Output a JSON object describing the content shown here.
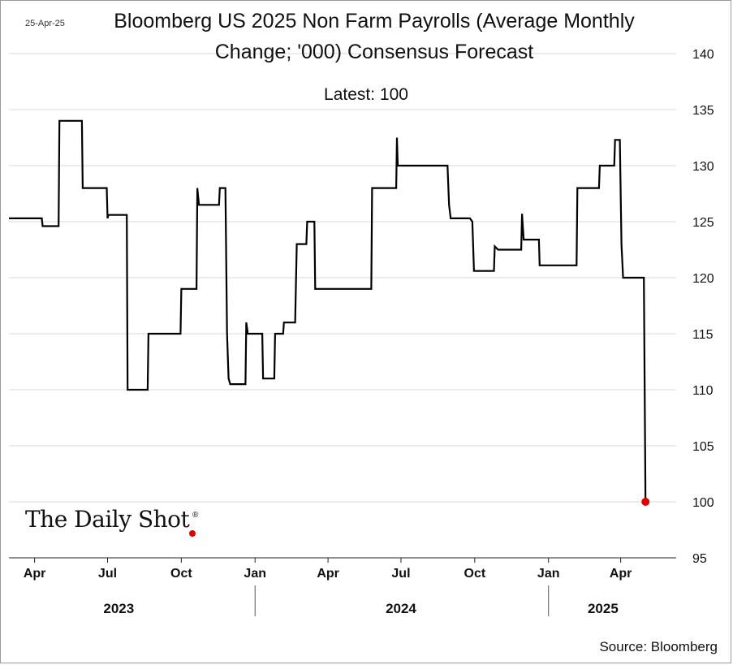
{
  "date_stamp": "25-Apr-25",
  "logo_text": "The Daily Shot",
  "source": "Source: Bloomberg",
  "colors": {
    "line": "#000000",
    "latest_marker": "#e00000",
    "grid": "#d9d9d9"
  },
  "chart_data": {
    "type": "line",
    "title": "Bloomberg US 2025 Non Farm Payrolls (Average Monthly Change; '000) Consensus Forecast",
    "subtitle": "Latest:  100",
    "ylim": [
      95,
      140
    ],
    "yticks": [
      140,
      135,
      130,
      125,
      120,
      115,
      110,
      105,
      100,
      95
    ],
    "y_axis_side": "right",
    "grid": "horizontal",
    "x_ticks": [
      {
        "label": "Apr",
        "date": "2023-04-01"
      },
      {
        "label": "Jul",
        "date": "2023-07-01"
      },
      {
        "label": "Oct",
        "date": "2023-10-01"
      },
      {
        "label": "Jan",
        "date": "2024-01-01"
      },
      {
        "label": "Apr",
        "date": "2024-04-01"
      },
      {
        "label": "Jul",
        "date": "2024-07-01"
      },
      {
        "label": "Oct",
        "date": "2024-10-01"
      },
      {
        "label": "Jan",
        "date": "2025-01-01"
      },
      {
        "label": "Apr",
        "date": "2025-04-01"
      }
    ],
    "year_labels": [
      {
        "label": "2023",
        "date": "2023-07-15"
      },
      {
        "label": "2024",
        "date": "2024-07-01"
      },
      {
        "label": "2025",
        "date": "2025-03-10"
      }
    ],
    "year_separators": [
      "2024-01-01",
      "2025-01-01"
    ],
    "xlim": [
      "2023-02-28",
      "2025-05-20"
    ],
    "series": [
      {
        "points": [
          [
            "2023-02-28",
            125.3
          ],
          [
            "2023-04-10",
            125.3
          ],
          [
            "2023-04-11",
            124.6
          ],
          [
            "2023-05-01",
            124.6
          ],
          [
            "2023-05-02",
            134.0
          ],
          [
            "2023-05-30",
            134.0
          ],
          [
            "2023-05-31",
            128.0
          ],
          [
            "2023-06-30",
            128.0
          ],
          [
            "2023-07-01",
            125.3
          ],
          [
            "2023-07-02",
            125.6
          ],
          [
            "2023-07-25",
            125.6
          ],
          [
            "2023-07-26",
            110.0
          ],
          [
            "2023-08-20",
            110.0
          ],
          [
            "2023-08-21",
            115.0
          ],
          [
            "2023-09-30",
            115.0
          ],
          [
            "2023-10-01",
            119.0
          ],
          [
            "2023-10-20",
            119.0
          ],
          [
            "2023-10-21",
            128.0
          ],
          [
            "2023-10-23",
            126.5
          ],
          [
            "2023-11-17",
            126.5
          ],
          [
            "2023-11-18",
            128.0
          ],
          [
            "2023-11-25",
            128.0
          ],
          [
            "2023-11-27",
            115.0
          ],
          [
            "2023-11-29",
            111.0
          ],
          [
            "2023-12-01",
            110.5
          ],
          [
            "2023-12-20",
            110.5
          ],
          [
            "2023-12-21",
            116.0
          ],
          [
            "2023-12-23",
            115.0
          ],
          [
            "2024-01-10",
            115.0
          ],
          [
            "2024-01-11",
            111.0
          ],
          [
            "2024-01-25",
            111.0
          ],
          [
            "2024-01-26",
            115.0
          ],
          [
            "2024-02-05",
            115.0
          ],
          [
            "2024-02-06",
            116.0
          ],
          [
            "2024-02-20",
            116.0
          ],
          [
            "2024-02-22",
            123.0
          ],
          [
            "2024-03-05",
            123.0
          ],
          [
            "2024-03-06",
            125.0
          ],
          [
            "2024-03-15",
            125.0
          ],
          [
            "2024-03-16",
            119.0
          ],
          [
            "2024-05-25",
            119.0
          ],
          [
            "2024-05-26",
            128.0
          ],
          [
            "2024-06-25",
            128.0
          ],
          [
            "2024-06-26",
            132.5
          ],
          [
            "2024-06-27",
            130.0
          ],
          [
            "2024-08-28",
            130.0
          ],
          [
            "2024-08-30",
            126.5
          ],
          [
            "2024-09-01",
            125.3
          ],
          [
            "2024-09-25",
            125.3
          ],
          [
            "2024-09-28",
            125.0
          ],
          [
            "2024-09-30",
            120.6
          ],
          [
            "2024-10-25",
            120.6
          ],
          [
            "2024-10-26",
            122.8
          ],
          [
            "2024-10-30",
            122.5
          ],
          [
            "2024-11-28",
            122.5
          ],
          [
            "2024-11-29",
            125.7
          ],
          [
            "2024-12-01",
            123.4
          ],
          [
            "2024-12-20",
            123.4
          ],
          [
            "2024-12-21",
            121.1
          ],
          [
            "2025-02-05",
            121.1
          ],
          [
            "2025-02-06",
            128.0
          ],
          [
            "2025-03-05",
            128.0
          ],
          [
            "2025-03-06",
            130.0
          ],
          [
            "2025-03-24",
            130.0
          ],
          [
            "2025-03-25",
            132.3
          ],
          [
            "2025-03-31",
            132.3
          ],
          [
            "2025-04-02",
            123.0
          ],
          [
            "2025-04-04",
            120.0
          ],
          [
            "2025-04-30",
            120.0
          ],
          [
            "2025-05-02",
            100.0
          ]
        ]
      }
    ],
    "latest_point": {
      "date": "2025-05-02",
      "value": 100
    }
  }
}
